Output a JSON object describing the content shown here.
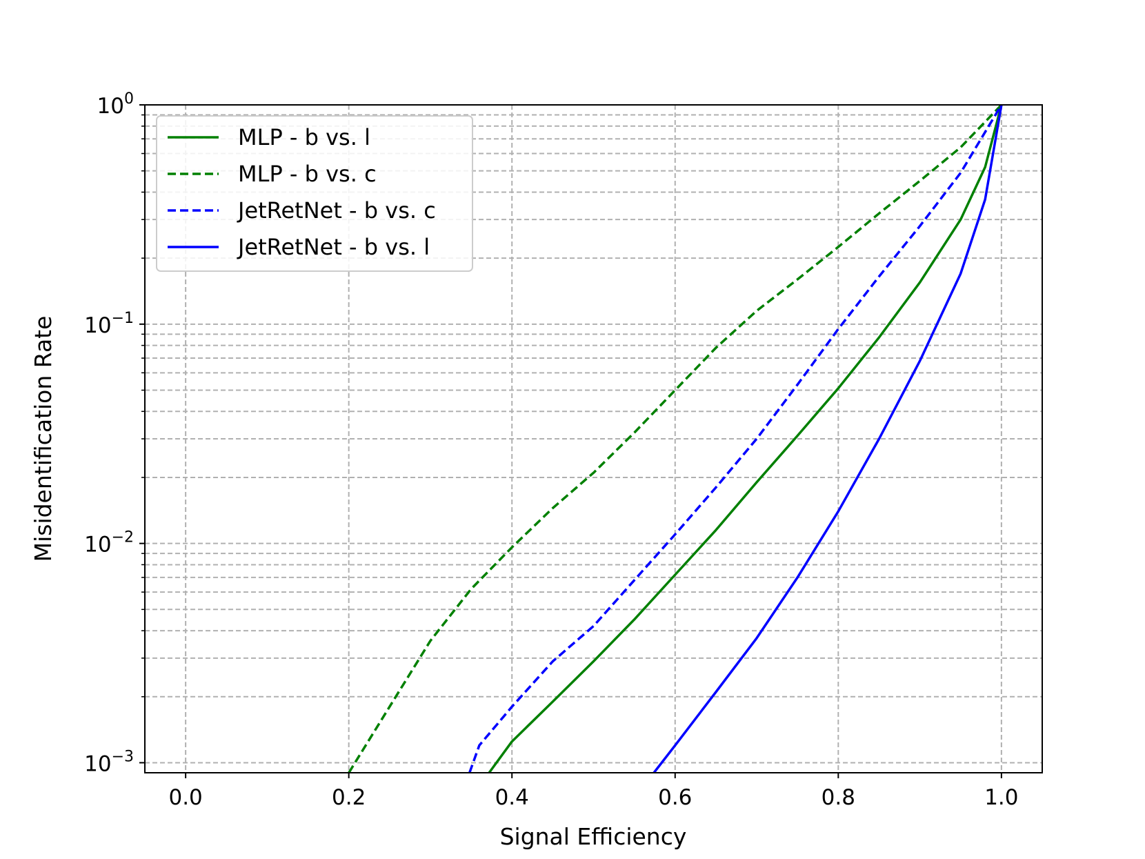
{
  "chart_data": {
    "type": "line",
    "title": "",
    "xlabel": "Signal Efficiency",
    "ylabel": "Misidentification Rate",
    "xlim": [
      -0.05,
      1.05
    ],
    "ylim": [
      0.0009,
      1.0
    ],
    "yscale": "log",
    "grid": true,
    "legend_position": "top-left",
    "x_ticks": [
      "0.0",
      "0.2",
      "0.4",
      "0.6",
      "0.8",
      "1.0"
    ],
    "y_ticks": [
      {
        "base": "10",
        "exp": "0",
        "value": 1
      },
      {
        "base": "10",
        "exp": "−1",
        "value": 0.1
      },
      {
        "base": "10",
        "exp": "−2",
        "value": 0.01
      },
      {
        "base": "10",
        "exp": "−3",
        "value": 0.001
      }
    ],
    "series": [
      {
        "name": "MLP - b vs. l",
        "color": "#008000",
        "style": "solid",
        "x": [
          0.372,
          0.4,
          0.45,
          0.5,
          0.55,
          0.6,
          0.65,
          0.7,
          0.75,
          0.8,
          0.85,
          0.9,
          0.95,
          0.98,
          1.0
        ],
        "y": [
          0.0009,
          0.00125,
          0.0019,
          0.0029,
          0.0045,
          0.0072,
          0.0115,
          0.019,
          0.031,
          0.051,
          0.087,
          0.155,
          0.3,
          0.52,
          1.0
        ]
      },
      {
        "name": "MLP - b vs. c",
        "color": "#008000",
        "style": "dashed",
        "x": [
          0.2,
          0.25,
          0.3,
          0.35,
          0.4,
          0.45,
          0.5,
          0.55,
          0.6,
          0.65,
          0.7,
          0.75,
          0.8,
          0.85,
          0.9,
          0.95,
          1.0
        ],
        "y": [
          0.0009,
          0.0018,
          0.0036,
          0.0062,
          0.0096,
          0.0145,
          0.021,
          0.032,
          0.05,
          0.078,
          0.115,
          0.16,
          0.225,
          0.32,
          0.45,
          0.64,
          1.0
        ]
      },
      {
        "name": "JetRetNet - b vs. c",
        "color": "#0000ff",
        "style": "dashed",
        "x": [
          0.348,
          0.36,
          0.4,
          0.45,
          0.5,
          0.55,
          0.6,
          0.65,
          0.7,
          0.75,
          0.8,
          0.85,
          0.9,
          0.95,
          1.0
        ],
        "y": [
          0.0009,
          0.0012,
          0.0018,
          0.0029,
          0.0042,
          0.0068,
          0.011,
          0.018,
          0.03,
          0.053,
          0.095,
          0.165,
          0.28,
          0.49,
          1.0
        ]
      },
      {
        "name": "JetRetNet - b vs. l",
        "color": "#0000ff",
        "style": "solid",
        "x": [
          0.574,
          0.6,
          0.65,
          0.7,
          0.75,
          0.8,
          0.85,
          0.9,
          0.95,
          0.98,
          1.0
        ],
        "y": [
          0.0009,
          0.0012,
          0.0021,
          0.0037,
          0.007,
          0.014,
          0.03,
          0.068,
          0.17,
          0.37,
          1.0
        ]
      }
    ]
  }
}
